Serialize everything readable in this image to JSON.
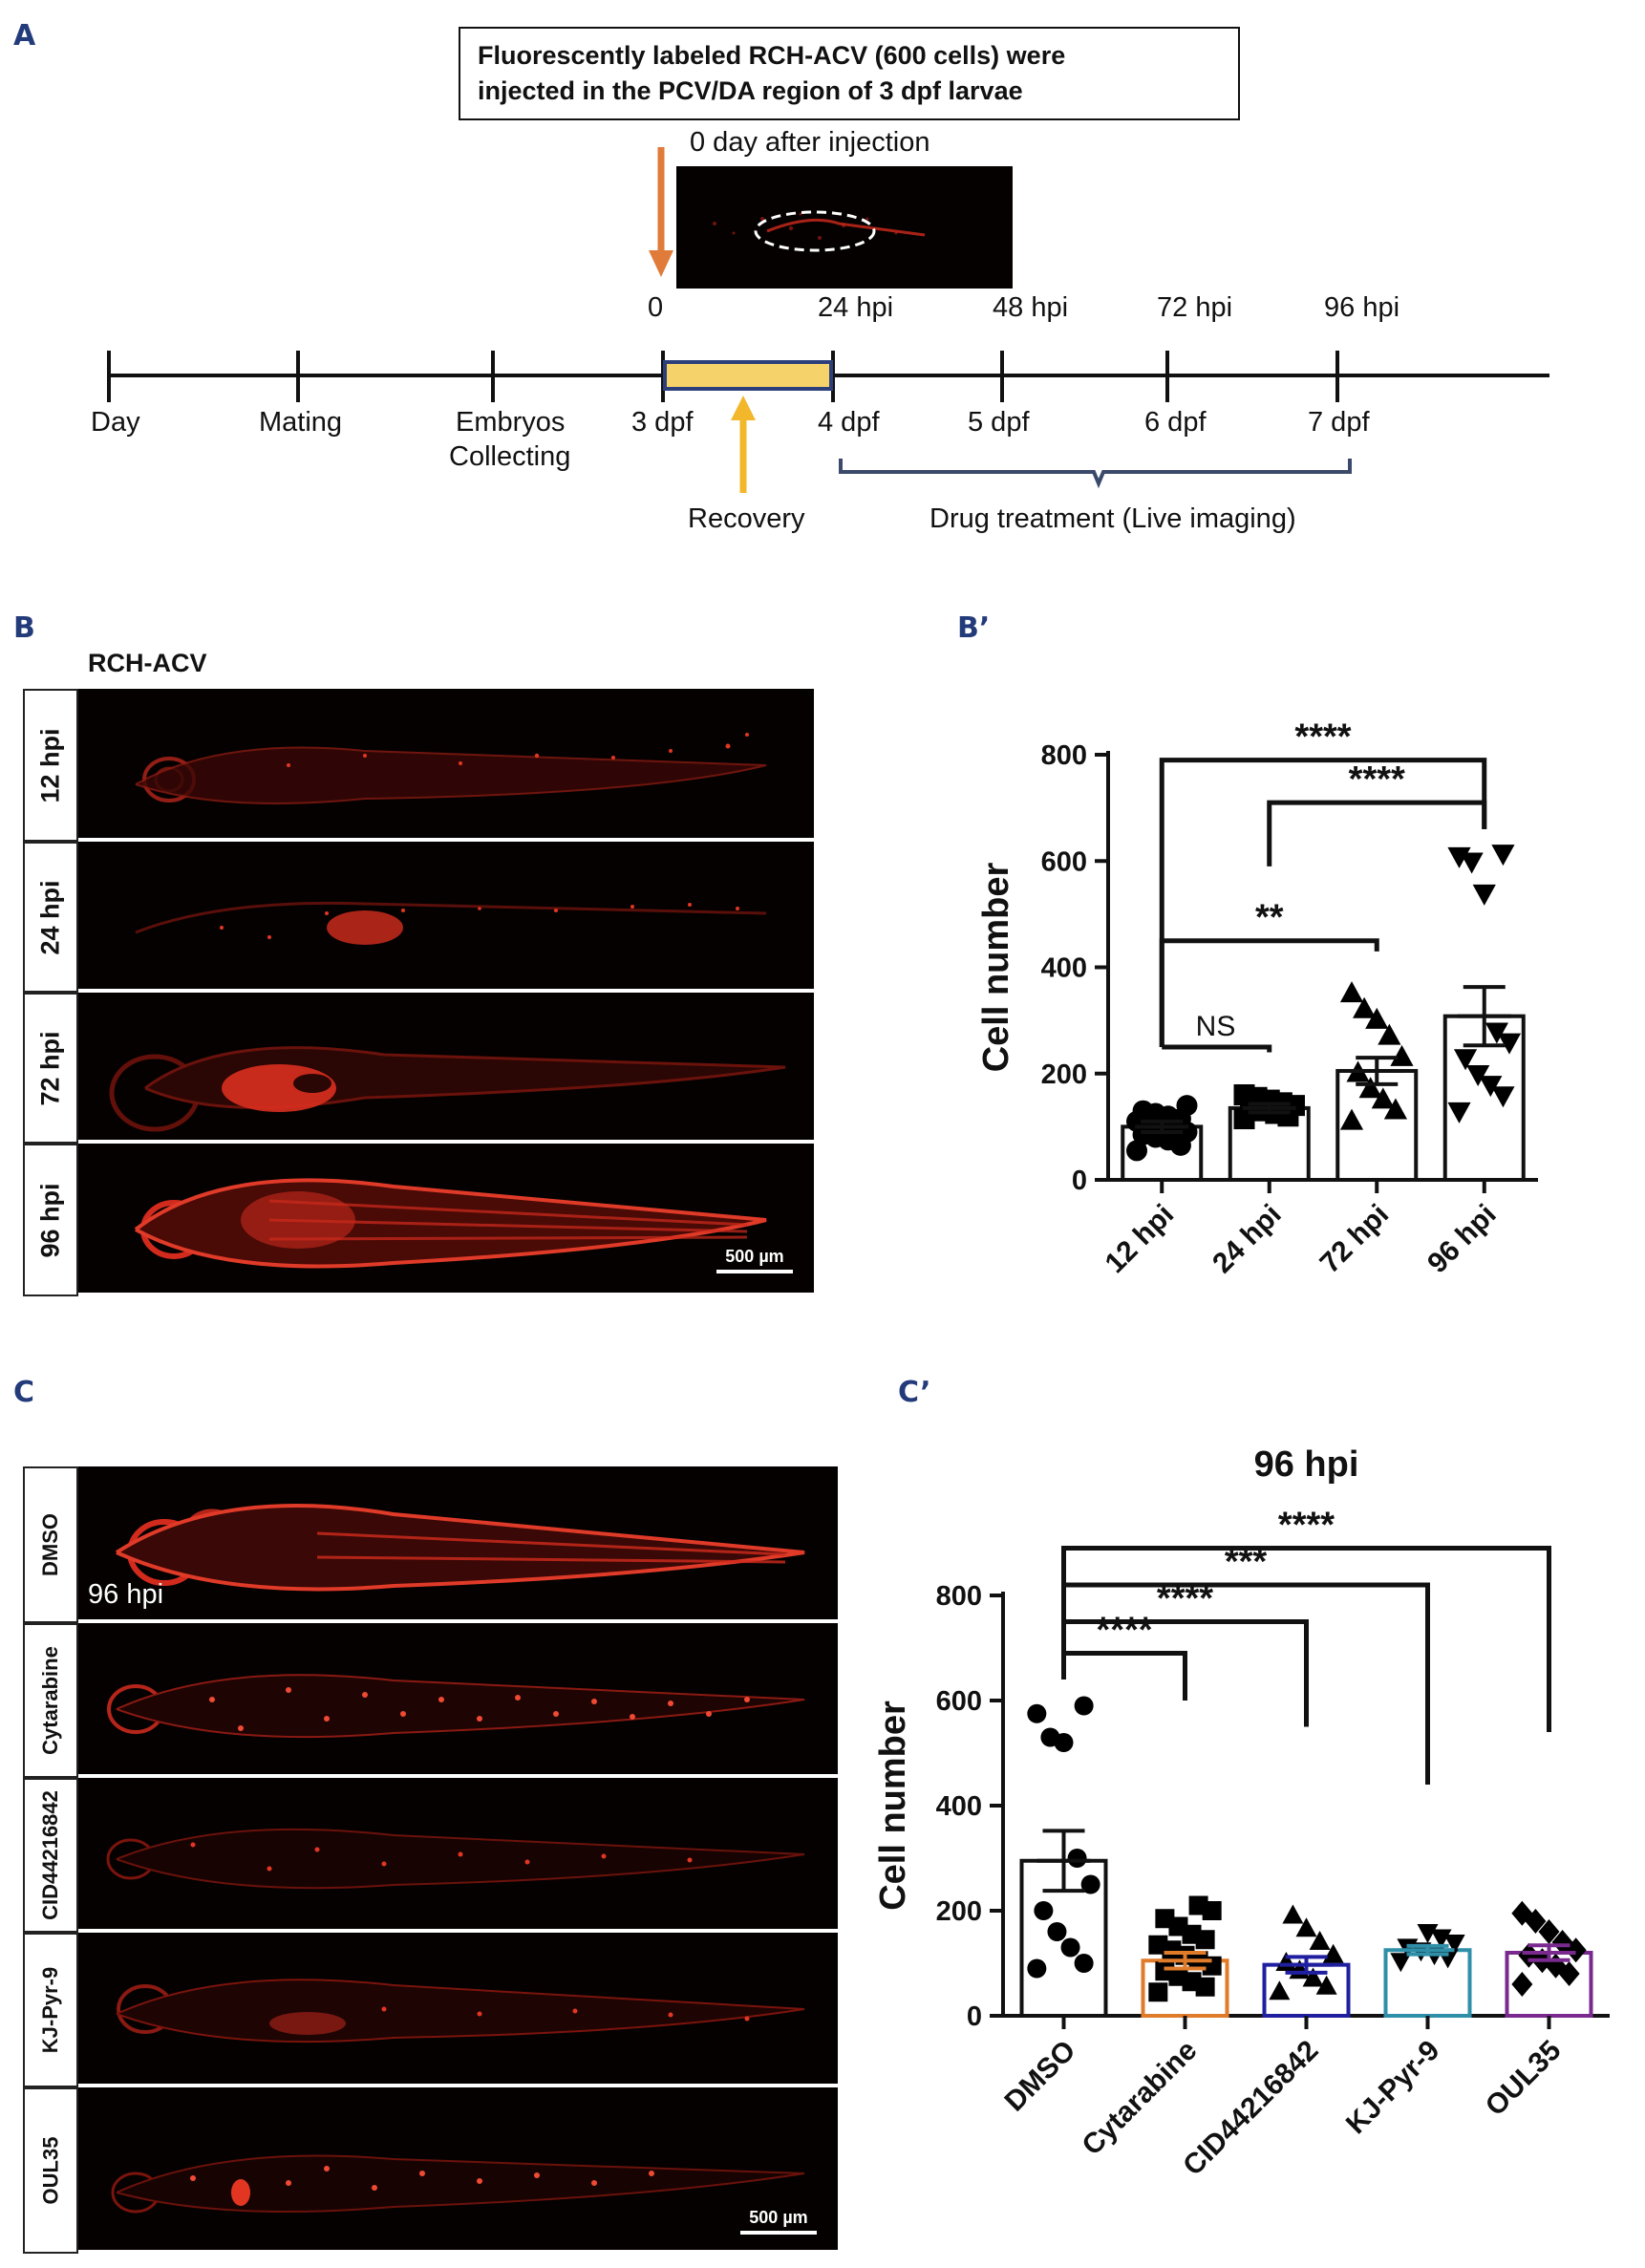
{
  "panels": {
    "A": "A",
    "B": "B",
    "B_prime": "B’",
    "C": "C",
    "C_prime": "C’"
  },
  "panel_a": {
    "box_text_line1": "Fluorescently labeled RCH-ACV (600 cells) were",
    "box_text_line2": "injected in the PCV/DA region of 3 dpf larvae",
    "inset_caption": "0 day after injection",
    "hpi_labels": [
      "0",
      "24 hpi",
      "48 hpi",
      "72 hpi",
      "96 hpi"
    ],
    "stage_labels": [
      "Day",
      "Mating",
      "Embryos",
      "Collecting",
      "3 dpf",
      "4 dpf",
      "5 dpf",
      "6 dpf",
      "7 dpf"
    ],
    "recovery_label": "Recovery",
    "drug_label": "Drug treatment (Live imaging)",
    "colors": {
      "injection_arrow": "#e07b39",
      "recovery_arrow": "#f2b72b",
      "recovery_bar": "#f6d36a",
      "recovery_border": "#2c3f7a",
      "bracket": "#3b4a6b"
    }
  },
  "panel_b": {
    "title": "RCH-ACV",
    "rows": [
      "12 hpi",
      "24 hpi",
      "72 hpi",
      "96 hpi"
    ],
    "scale_bar": "500 µm"
  },
  "panel_c": {
    "rows": [
      "DMSO",
      "Cytarabine",
      "CID44216842",
      "KJ-Pyr-9",
      "OUL35"
    ],
    "overlay_label": "96 hpi",
    "scale_bar": "500 µm"
  },
  "chart_data": [
    {
      "type": "bar",
      "panel": "B’",
      "categories": [
        "12 hpi",
        "24 hpi",
        "72 hpi",
        "96 hpi"
      ],
      "values": [
        100,
        135,
        205,
        308
      ],
      "sem": [
        10,
        8,
        25,
        55
      ],
      "ylabel": "Cell number",
      "ylim": [
        0,
        800
      ],
      "yticks": [
        "0",
        "200",
        "400",
        "600",
        "800"
      ],
      "markers": [
        "circle",
        "square",
        "triangle-up",
        "triangle-down"
      ],
      "points": [
        [
          55,
          65,
          75,
          80,
          85,
          90,
          95,
          100,
          105,
          110,
          115,
          120,
          125,
          130,
          140
        ],
        [
          115,
          120,
          125,
          130,
          135,
          140,
          145,
          150,
          155,
          160
        ],
        [
          110,
          130,
          150,
          170,
          200,
          230,
          270,
          300,
          320,
          350
        ],
        [
          130,
          160,
          180,
          200,
          230,
          260,
          280,
          540,
          600,
          610,
          615
        ]
      ],
      "significance": [
        {
          "from": 0,
          "to": 1,
          "label": "NS"
        },
        {
          "from": 0,
          "to": 2,
          "label": "**"
        },
        {
          "from": 1,
          "to": 3,
          "label": "****"
        },
        {
          "from": 0,
          "to": 3,
          "label": "****"
        }
      ],
      "bar_color": "#111111"
    },
    {
      "type": "bar",
      "panel": "C’",
      "title": "96 hpi",
      "categories": [
        "DMSO",
        "Cytarabine",
        "CID44216842",
        "KJ-Pyr-9",
        "OUL35"
      ],
      "values": [
        295,
        105,
        97,
        125,
        120
      ],
      "sem": [
        57,
        15,
        15,
        8,
        14
      ],
      "ylabel": "Cell number",
      "ylim": [
        0,
        800
      ],
      "yticks": [
        "0",
        "200",
        "400",
        "600",
        "800"
      ],
      "colors": [
        "#111111",
        "#e07b2a",
        "#1f1fa0",
        "#2f8fa8",
        "#7a2a8f"
      ],
      "markers": [
        "circle",
        "square",
        "triangle-up",
        "triangle-down",
        "diamond"
      ],
      "points": [
        [
          90,
          100,
          130,
          160,
          200,
          250,
          300,
          520,
          530,
          575,
          590
        ],
        [
          45,
          55,
          65,
          75,
          85,
          95,
          105,
          115,
          125,
          135,
          145,
          155,
          170,
          185,
          200,
          210
        ],
        [
          45,
          55,
          70,
          85,
          100,
          115,
          140,
          165,
          190
        ],
        [
          105,
          112,
          118,
          125,
          132,
          140,
          150,
          160
        ],
        [
          60,
          80,
          95,
          105,
          115,
          125,
          140,
          160,
          180,
          195
        ]
      ],
      "significance": [
        {
          "from": 0,
          "to": 1,
          "label": "****"
        },
        {
          "from": 0,
          "to": 2,
          "label": "****"
        },
        {
          "from": 0,
          "to": 3,
          "label": "***"
        },
        {
          "from": 0,
          "to": 4,
          "label": "****"
        }
      ]
    }
  ]
}
